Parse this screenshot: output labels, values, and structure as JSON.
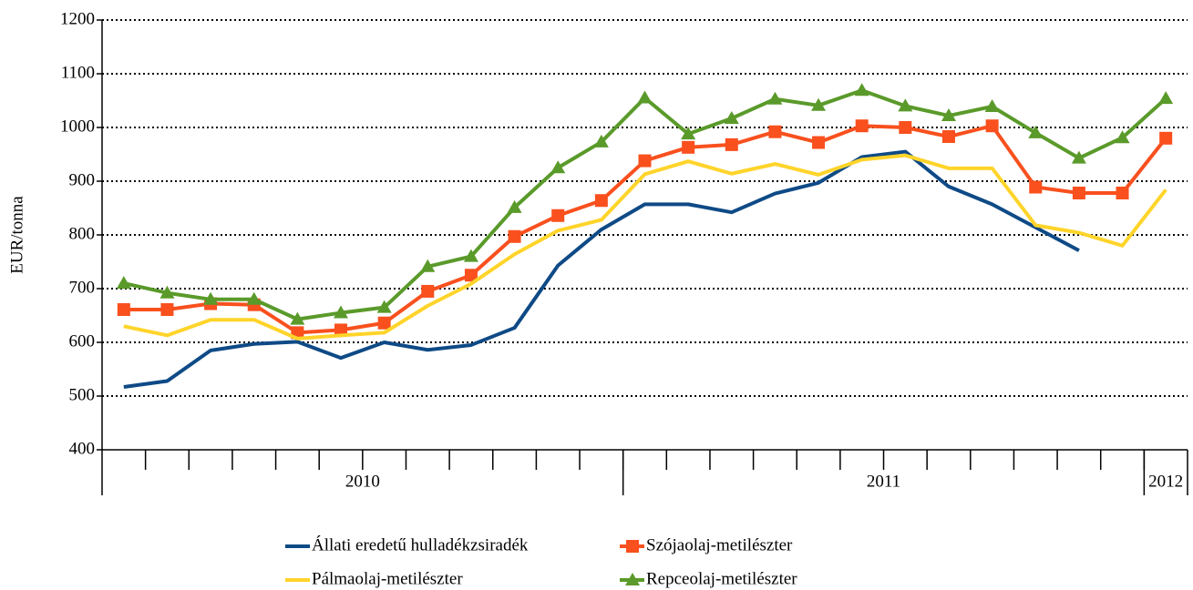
{
  "chart_data": {
    "type": "line",
    "y_label": "EUR/tonna",
    "categories": [
      null,
      null,
      null,
      null,
      null,
      null,
      null,
      null,
      null,
      null,
      null,
      null,
      null,
      null,
      null,
      null,
      null,
      null,
      null,
      null,
      null,
      null,
      null,
      null,
      null
    ],
    "groups": [
      {
        "label": "2010",
        "span": 12
      },
      {
        "label": "2011",
        "span": 12
      },
      {
        "label": "2012",
        "span": 1
      }
    ],
    "ylim": [
      400,
      1200
    ],
    "yticks": [
      400,
      500,
      600,
      700,
      800,
      900,
      1000,
      1100,
      1200
    ],
    "grid": true,
    "legend": "bottom",
    "series": [
      {
        "name": "Állati eredetű hulladékzsiradék",
        "color": "#0e4a86",
        "marker": "none",
        "values": [
          517,
          528,
          585,
          597,
          601,
          571,
          600,
          586,
          595,
          627,
          743,
          810,
          857,
          857,
          842,
          877,
          897,
          945,
          955,
          890,
          857,
          814,
          771,
          null,
          null
        ]
      },
      {
        "name": "Szójaolaj-metilészter",
        "color": "#f9501e",
        "marker": "square",
        "values": [
          661,
          661,
          672,
          670,
          618,
          623,
          636,
          695,
          725,
          797,
          836,
          864,
          938,
          963,
          968,
          992,
          972,
          1003,
          1000,
          983,
          1003,
          889,
          878,
          878,
          980
        ]
      },
      {
        "name": "Pálmaolaj-metilészter",
        "color": "#ffd42a",
        "marker": "none",
        "values": [
          630,
          613,
          642,
          642,
          607,
          613,
          618,
          668,
          709,
          764,
          808,
          828,
          913,
          937,
          914,
          932,
          912,
          940,
          948,
          924,
          924,
          818,
          804,
          780,
          884
        ]
      },
      {
        "name": "Repceolaj-metilészter",
        "color": "#5a9a2a",
        "marker": "triangle",
        "values": [
          710,
          692,
          680,
          680,
          643,
          655,
          665,
          741,
          760,
          851,
          925,
          973,
          1055,
          988,
          1017,
          1053,
          1041,
          1069,
          1040,
          1022,
          1039,
          990,
          943,
          981,
          1054
        ]
      }
    ]
  }
}
